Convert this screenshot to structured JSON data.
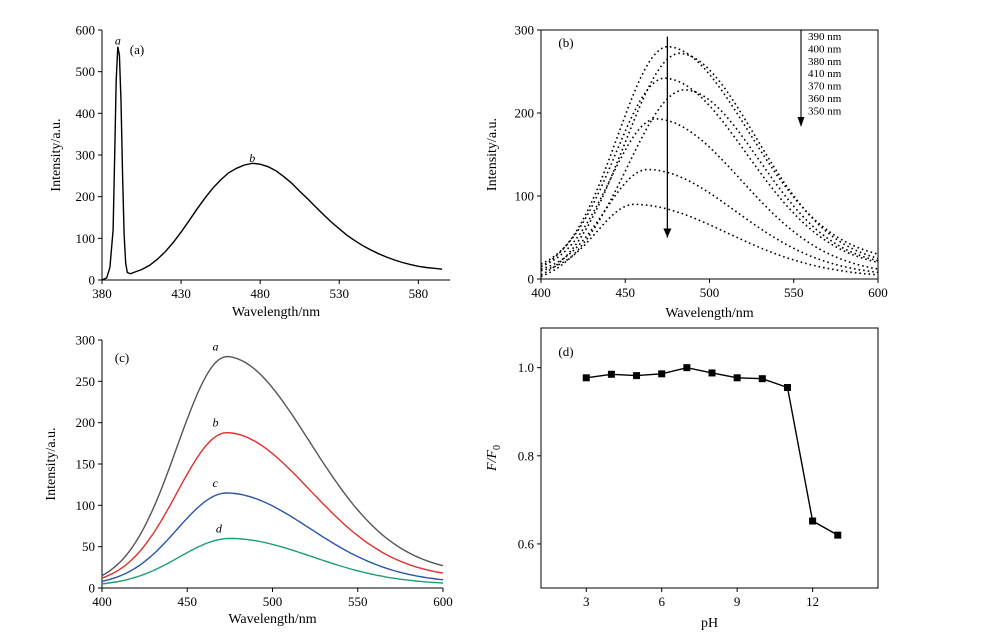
{
  "chart_data": [
    {
      "panel": "(a)",
      "type": "line",
      "xlabel": "Wavelength/nm",
      "ylabel": "Intensity/a.u.",
      "xlim": [
        380,
        600
      ],
      "ylim": [
        0,
        600
      ],
      "xticks": [
        380,
        430,
        480,
        530,
        580
      ],
      "yticks": [
        0,
        100,
        200,
        300,
        400,
        500,
        600
      ],
      "curve_labels": [
        {
          "text": "a",
          "x": 390,
          "y": 565
        },
        {
          "text": "b",
          "x": 475,
          "y": 283
        }
      ],
      "series": [
        {
          "color": "#000000",
          "style": "solid",
          "x": [
            380,
            383,
            385,
            387,
            388,
            389,
            390,
            391,
            392,
            393,
            394,
            395,
            396,
            398,
            400,
            405,
            410,
            415,
            420,
            425,
            430,
            435,
            440,
            445,
            450,
            455,
            460,
            465,
            470,
            475,
            480,
            485,
            490,
            495,
            500,
            505,
            510,
            515,
            520,
            525,
            530,
            535,
            540,
            545,
            550,
            555,
            560,
            565,
            570,
            575,
            580,
            585,
            590,
            595
          ],
          "y": [
            0,
            5,
            30,
            120,
            300,
            480,
            560,
            540,
            430,
            250,
            110,
            40,
            18,
            15,
            18,
            25,
            35,
            50,
            68,
            90,
            115,
            142,
            170,
            196,
            220,
            240,
            257,
            268,
            276,
            280,
            278,
            272,
            262,
            248,
            232,
            213,
            195,
            176,
            157,
            139,
            123,
            107,
            94,
            82,
            72,
            63,
            55,
            48,
            42,
            37,
            33,
            30,
            28,
            26
          ]
        }
      ]
    },
    {
      "panel": "(b)",
      "type": "line",
      "xlabel": "Wavelength/nm",
      "ylabel": "Intensity/a.u.",
      "xlim": [
        400,
        600
      ],
      "ylim": [
        0,
        300
      ],
      "xticks": [
        400,
        450,
        500,
        550,
        600
      ],
      "xtick_labels": [
        "400",
        "450",
        "500",
        "550",
        "600"
      ],
      "yticks": [
        0,
        100,
        200,
        300
      ],
      "legend": [
        "390 nm",
        "400 nm",
        "380 nm",
        "410 nm",
        "370 nm",
        "360 nm",
        "350 nm"
      ],
      "legend_placement": "top-right",
      "arrow": {
        "x": 475,
        "from_y": 292,
        "to_y": 50
      },
      "legend_arrow": true,
      "series": [
        {
          "name": "390 nm",
          "style": "dotted",
          "color": "#000000",
          "peak_x": 475,
          "peak_y": 280,
          "left_y": 15,
          "right_y": 30
        },
        {
          "name": "400 nm",
          "style": "dotted",
          "color": "#000000",
          "peak_x": 482,
          "peak_y": 272,
          "left_y": 5,
          "right_y": 25
        },
        {
          "name": "380 nm",
          "style": "dotted",
          "color": "#000000",
          "peak_x": 473,
          "peak_y": 242,
          "left_y": 18,
          "right_y": 20
        },
        {
          "name": "410 nm",
          "style": "dotted",
          "color": "#000000",
          "peak_x": 485,
          "peak_y": 228,
          "left_y": 3,
          "right_y": 22
        },
        {
          "name": "370 nm",
          "style": "dotted",
          "color": "#000000",
          "peak_x": 468,
          "peak_y": 193,
          "left_y": 15,
          "right_y": 12
        },
        {
          "name": "360 nm",
          "style": "dotted",
          "color": "#000000",
          "peak_x": 463,
          "peak_y": 132,
          "left_y": 12,
          "right_y": 8
        },
        {
          "name": "350 nm",
          "style": "dotted",
          "color": "#000000",
          "peak_x": 455,
          "peak_y": 90,
          "left_y": 10,
          "right_y": 5
        }
      ]
    },
    {
      "panel": "(c)",
      "type": "line",
      "xlabel": "Wavelength/nm",
      "ylabel": "Intensity/a.u.",
      "xlim": [
        400,
        600
      ],
      "ylim": [
        0,
        300
      ],
      "xticks": [
        400,
        450,
        500,
        550,
        600
      ],
      "yticks": [
        0,
        50,
        100,
        150,
        200,
        250,
        300
      ],
      "series": [
        {
          "label": "a",
          "color": "#555555",
          "style": "solid",
          "peak_x": 473,
          "peak_y": 280,
          "left_y": 15,
          "right_y": 27
        },
        {
          "label": "b",
          "color": "#e0302c",
          "style": "solid",
          "peak_x": 473,
          "peak_y": 188,
          "left_y": 12,
          "right_y": 18
        },
        {
          "label": "c",
          "color": "#2b56a8",
          "style": "solid",
          "peak_x": 473,
          "peak_y": 115,
          "left_y": 8,
          "right_y": 10
        },
        {
          "label": "d",
          "color": "#1f9e6e",
          "style": "solid",
          "peak_x": 475,
          "peak_y": 60,
          "left_y": 5,
          "right_y": 6
        }
      ]
    },
    {
      "panel": "(d)",
      "type": "line",
      "xlabel": "pH",
      "ylabel": "F/F0",
      "ylabel_main": "F/F",
      "ylabel_sub": "0",
      "xlim": [
        1.2,
        14.6
      ],
      "ylim": [
        0.5,
        1.09
      ],
      "xticks": [
        3,
        6,
        9,
        12
      ],
      "yticks": [
        0.6,
        0.8,
        1.0
      ],
      "ytick_labels": [
        "0.6",
        "0.8",
        "1.0"
      ],
      "series": [
        {
          "color": "#000000",
          "style": "solid",
          "marker": "square",
          "x": [
            3,
            4,
            5,
            6,
            7,
            8,
            9,
            10,
            11,
            12,
            13
          ],
          "y": [
            0.977,
            0.985,
            0.982,
            0.986,
            1.0,
            0.988,
            0.977,
            0.975,
            0.955,
            0.652,
            0.62
          ]
        }
      ]
    }
  ]
}
